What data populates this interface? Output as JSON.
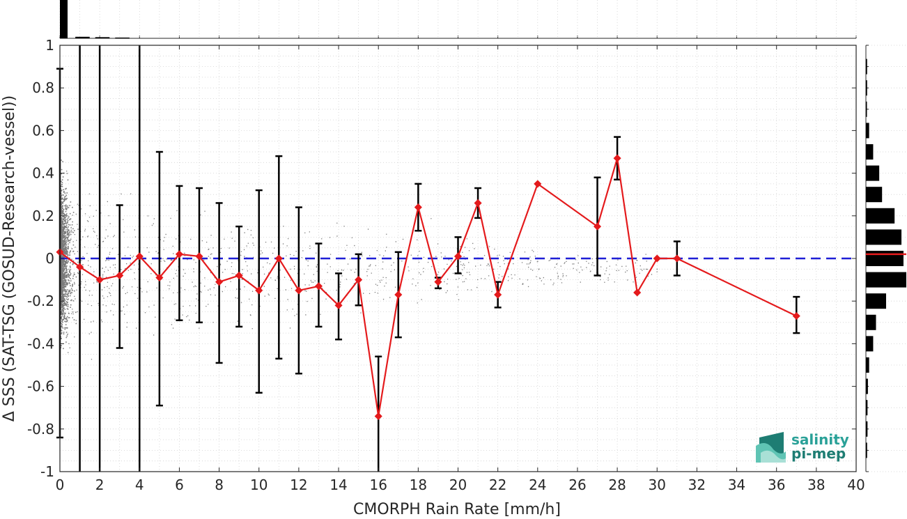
{
  "chart_data": {
    "type": "scatter",
    "xlabel": "CMORPH Rain Rate [mm/h]",
    "ylabel": "Δ SSS (SAT-TSG (GOSUD-Research-vessel))",
    "xlim": [
      0,
      40
    ],
    "ylim": [
      -1,
      1
    ],
    "xticks": [
      "0",
      "2",
      "4",
      "6",
      "8",
      "10",
      "12",
      "14",
      "16",
      "18",
      "20",
      "22",
      "24",
      "26",
      "28",
      "30",
      "32",
      "34",
      "36",
      "38",
      "40"
    ],
    "yticks": [
      "-1",
      "-0.8",
      "-0.6",
      "-0.4",
      "-0.2",
      "0",
      "0.2",
      "0.4",
      "0.6",
      "0.8",
      "1"
    ],
    "grid": true,
    "reference_line": {
      "y": 0,
      "style": "dashed",
      "color": "#1f1fd6"
    },
    "series": [
      {
        "kind": "binned-mean-with-error-bars",
        "color": "#e41a1c",
        "points": [
          {
            "x": 0,
            "y": 0.03,
            "lo": -0.84,
            "hi": 0.89
          },
          {
            "x": 1,
            "y": -0.04,
            "lo": -1,
            "hi": 1
          },
          {
            "x": 2,
            "y": -0.1,
            "lo": -1,
            "hi": 1
          },
          {
            "x": 3,
            "y": -0.08,
            "lo": -0.42,
            "hi": 0.25
          },
          {
            "x": 4,
            "y": 0.01,
            "lo": -1,
            "hi": 1
          },
          {
            "x": 5,
            "y": -0.09,
            "lo": -0.69,
            "hi": 0.5
          },
          {
            "x": 6,
            "y": 0.02,
            "lo": -0.29,
            "hi": 0.34
          },
          {
            "x": 7,
            "y": 0.01,
            "lo": -0.3,
            "hi": 0.33
          },
          {
            "x": 8,
            "y": -0.11,
            "lo": -0.49,
            "hi": 0.26
          },
          {
            "x": 9,
            "y": -0.08,
            "lo": -0.32,
            "hi": 0.15
          },
          {
            "x": 10,
            "y": -0.15,
            "lo": -0.63,
            "hi": 0.32
          },
          {
            "x": 11,
            "y": 0.0,
            "lo": -0.47,
            "hi": 0.48
          },
          {
            "x": 12,
            "y": -0.15,
            "lo": -0.54,
            "hi": 0.24
          },
          {
            "x": 13,
            "y": -0.13,
            "lo": -0.32,
            "hi": 0.07
          },
          {
            "x": 14,
            "y": -0.22,
            "lo": -0.38,
            "hi": -0.07
          },
          {
            "x": 15,
            "y": -0.1,
            "lo": -0.22,
            "hi": 0.02
          },
          {
            "x": 16,
            "y": -0.74,
            "lo": -1,
            "hi": -0.46
          },
          {
            "x": 17,
            "y": -0.17,
            "lo": -0.37,
            "hi": 0.03
          },
          {
            "x": 18,
            "y": 0.24,
            "lo": 0.13,
            "hi": 0.35
          },
          {
            "x": 19,
            "y": -0.11,
            "lo": -0.14,
            "hi": -0.09
          },
          {
            "x": 20,
            "y": 0.01,
            "lo": -0.07,
            "hi": 0.1
          },
          {
            "x": 21,
            "y": 0.26,
            "lo": 0.19,
            "hi": 0.33
          },
          {
            "x": 22,
            "y": -0.17,
            "lo": -0.23,
            "hi": -0.11
          },
          {
            "x": 24,
            "y": 0.35,
            "lo": null,
            "hi": null
          },
          {
            "x": 27,
            "y": 0.15,
            "lo": -0.08,
            "hi": 0.38
          },
          {
            "x": 28,
            "y": 0.47,
            "lo": 0.37,
            "hi": 0.57
          },
          {
            "x": 29,
            "y": -0.16,
            "lo": null,
            "hi": null
          },
          {
            "x": 30,
            "y": 0.0,
            "lo": null,
            "hi": null
          },
          {
            "x": 31,
            "y": 0.0,
            "lo": -0.08,
            "hi": 0.08
          },
          {
            "x": 37,
            "y": -0.27,
            "lo": -0.35,
            "hi": -0.18
          }
        ]
      }
    ],
    "top_histogram": [
      {
        "x": 0,
        "count": 1.0
      },
      {
        "x": 1,
        "count": 0.04
      },
      {
        "x": 2,
        "count": 0.03
      },
      {
        "x": 3,
        "count": 0.02
      }
    ],
    "right_histogram": {
      "median_y": 0.02,
      "bins": [
        {
          "y": 0.9,
          "count": 0.03
        },
        {
          "y": 0.8,
          "count": 0.03
        },
        {
          "y": 0.7,
          "count": 0.02
        },
        {
          "y": 0.6,
          "count": 0.08
        },
        {
          "y": 0.5,
          "count": 0.18
        },
        {
          "y": 0.4,
          "count": 0.33
        },
        {
          "y": 0.3,
          "count": 0.4
        },
        {
          "y": 0.2,
          "count": 0.71
        },
        {
          "y": 0.1,
          "count": 0.88
        },
        {
          "y": 0.0,
          "count": 0.93
        },
        {
          "y": -0.1,
          "count": 1.0
        },
        {
          "y": -0.2,
          "count": 0.5
        },
        {
          "y": -0.3,
          "count": 0.25
        },
        {
          "y": -0.4,
          "count": 0.18
        },
        {
          "y": -0.5,
          "count": 0.08
        },
        {
          "y": -0.6,
          "count": 0.05
        },
        {
          "y": -0.7,
          "count": 0.04
        },
        {
          "y": -0.8,
          "count": 0.04
        },
        {
          "y": -0.9,
          "count": 0.03
        }
      ]
    }
  },
  "logo": {
    "line1": "salinity",
    "line2": "pi-mep",
    "color_text": "#2aa198",
    "color_dark": "#1e7d73"
  }
}
